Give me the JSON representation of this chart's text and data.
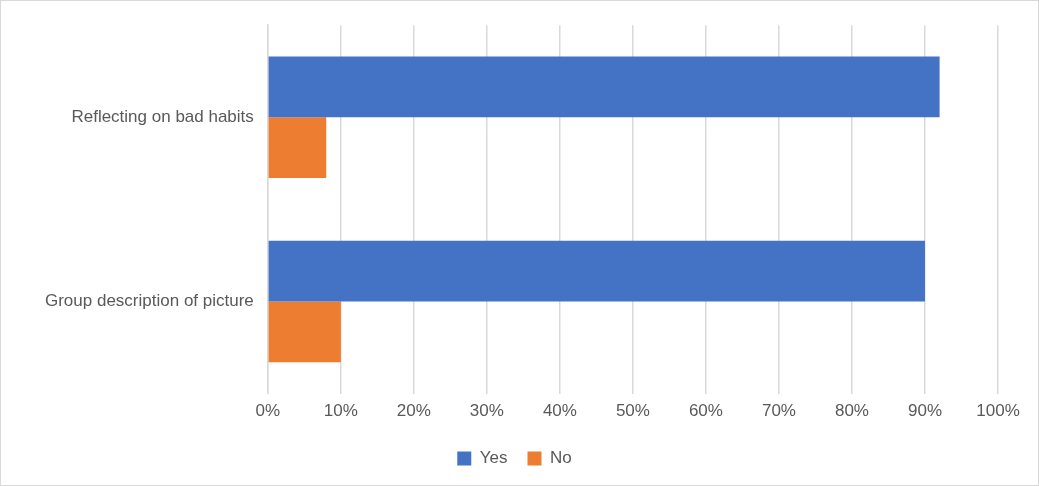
{
  "chart_data": {
    "type": "bar",
    "orientation": "horizontal",
    "categories": [
      "Reflecting on bad habits",
      "Group description of picture"
    ],
    "series": [
      {
        "name": "Yes",
        "color": "#4472c4",
        "values": [
          92,
          90
        ]
      },
      {
        "name": "No",
        "color": "#ed7d31",
        "values": [
          8,
          10
        ]
      }
    ],
    "xlim": [
      0,
      100
    ],
    "xticks": [
      {
        "value": 0,
        "label": "0%"
      },
      {
        "value": 10,
        "label": "10%"
      },
      {
        "value": 20,
        "label": "20%"
      },
      {
        "value": 30,
        "label": "30%"
      },
      {
        "value": 40,
        "label": "40%"
      },
      {
        "value": 50,
        "label": "50%"
      },
      {
        "value": 60,
        "label": "60%"
      },
      {
        "value": 70,
        "label": "70%"
      },
      {
        "value": 80,
        "label": "80%"
      },
      {
        "value": 90,
        "label": "90%"
      },
      {
        "value": 100,
        "label": "100%"
      }
    ],
    "grid": "x",
    "legend": "bottom"
  }
}
